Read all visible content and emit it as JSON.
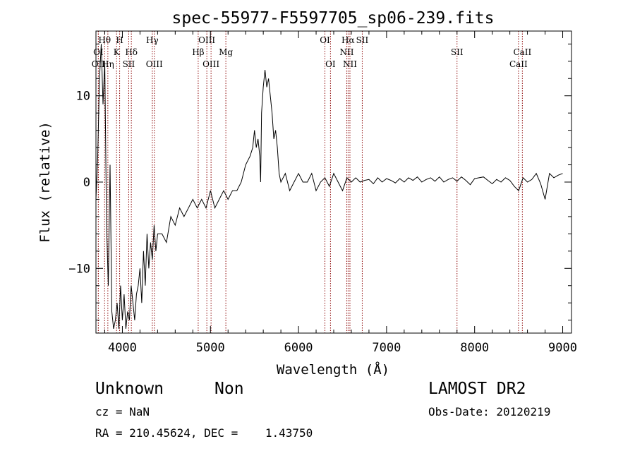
{
  "chart_data": {
    "type": "line",
    "title": "spec-55977-F5597705_sp06-239.fits",
    "xlabel": "Wavelength (Å)",
    "ylabel": "Flux (relative)",
    "xlim": [
      3700,
      9100
    ],
    "ylim": [
      -17.5,
      17.5
    ],
    "xticks": [
      4000,
      5000,
      6000,
      7000,
      8000,
      9000
    ],
    "xtick_labels": [
      "4000",
      "5000",
      "6000",
      "7000",
      "8000",
      "9000"
    ],
    "yticks": [
      -10,
      0,
      10
    ],
    "ytick_labels": [
      "−10",
      "0",
      "10"
    ],
    "grid": false,
    "legend": "none",
    "series": [
      {
        "x": [
          3700,
          3720,
          3740,
          3760,
          3780,
          3800,
          3820,
          3840,
          3860,
          3880,
          3900,
          3920,
          3940,
          3960,
          3980,
          4000,
          4020,
          4040,
          4060,
          4080,
          4100,
          4120,
          4140,
          4160,
          4180,
          4200,
          4220,
          4240,
          4260,
          4280,
          4300,
          4320,
          4340,
          4360,
          4380,
          4400,
          4450,
          4500,
          4550,
          4600,
          4650,
          4700,
          4750,
          4800,
          4850,
          4900,
          4950,
          5000,
          5050,
          5100,
          5150,
          5200,
          5250,
          5300,
          5350,
          5400,
          5450,
          5480,
          5500,
          5520,
          5540,
          5560,
          5570,
          5580,
          5600,
          5620,
          5640,
          5660,
          5680,
          5700,
          5720,
          5740,
          5760,
          5780,
          5800,
          5850,
          5900,
          5950,
          6000,
          6050,
          6100,
          6150,
          6200,
          6250,
          6300,
          6350,
          6400,
          6450,
          6500,
          6550,
          6600,
          6650,
          6700,
          6750,
          6800,
          6850,
          6900,
          6950,
          7000,
          7050,
          7100,
          7150,
          7200,
          7250,
          7300,
          7350,
          7400,
          7450,
          7500,
          7550,
          7600,
          7650,
          7700,
          7750,
          7800,
          7850,
          7900,
          7950,
          8000,
          8050,
          8100,
          8150,
          8200,
          8250,
          8300,
          8350,
          8400,
          8450,
          8500,
          8550,
          8600,
          8650,
          8700,
          8750,
          8800,
          8850,
          8900,
          8950,
          9000
        ],
        "y": [
          -2,
          3,
          12,
          16,
          9,
          14,
          -5,
          -12,
          2,
          -15,
          -17,
          -16,
          -14,
          -17,
          -12,
          -16,
          -13,
          -17,
          -15,
          -16,
          -12,
          -14,
          -16,
          -13,
          -12,
          -10,
          -14,
          -8,
          -12,
          -6,
          -10,
          -7,
          -9,
          -5,
          -8,
          -6,
          -6,
          -7,
          -4,
          -5,
          -3,
          -4,
          -3,
          -2,
          -3,
          -2,
          -3,
          -1,
          -3,
          -2,
          -1,
          -2,
          -1,
          -1,
          0,
          2,
          3,
          4,
          6,
          4,
          5,
          3,
          0,
          8,
          11,
          13,
          11,
          12,
          10,
          8,
          5,
          6,
          4,
          1,
          0,
          1,
          -1,
          0,
          1,
          0,
          0,
          1,
          -1,
          0,
          0.5,
          -0.5,
          1,
          0,
          -1,
          0.5,
          0,
          0.5,
          0,
          0.2,
          0.3,
          -0.2,
          0.5,
          0,
          0.4,
          0.2,
          -0.1,
          0.4,
          0,
          0.5,
          0.2,
          0.6,
          0,
          0.3,
          0.5,
          0.1,
          0.6,
          0,
          0.3,
          0.5,
          0.1,
          0.6,
          0.2,
          -0.3,
          0.4,
          0.5,
          0.6,
          0.2,
          -0.2,
          0.3,
          0,
          0.5,
          0.2,
          -0.5,
          -1,
          0.5,
          0,
          0.3,
          1,
          -0.2,
          -2,
          1,
          0.5,
          0.8,
          1
        ]
      }
    ],
    "lines": [
      {
        "name": "Hθ",
        "x": 3798,
        "row": 0
      },
      {
        "name": "OI",
        "x": 3727,
        "row": 1
      },
      {
        "name": "OII",
        "x": 3727,
        "row": 2
      },
      {
        "name": "Hη",
        "x": 3835,
        "row": 2
      },
      {
        "name": "H",
        "x": 3969,
        "row": 0
      },
      {
        "name": "K",
        "x": 3934,
        "row": 1
      },
      {
        "name": "Hδ",
        "x": 4102,
        "row": 1
      },
      {
        "name": "SII",
        "x": 4072,
        "row": 2
      },
      {
        "name": "Hγ",
        "x": 4340,
        "row": 0
      },
      {
        "name": "OIII",
        "x": 4363,
        "row": 2
      },
      {
        "name": "OIII",
        "x": 4959,
        "row": 0
      },
      {
        "name": "Hβ",
        "x": 4861,
        "row": 1
      },
      {
        "name": "OIII",
        "x": 5007,
        "row": 2
      },
      {
        "name": "Mg",
        "x": 5175,
        "row": 1
      },
      {
        "name": "OI",
        "x": 6300,
        "row": 0
      },
      {
        "name": "OI",
        "x": 6363,
        "row": 2
      },
      {
        "name": "Hα",
        "x": 6563,
        "row": 0
      },
      {
        "name": "SII",
        "x": 6724,
        "row": 0
      },
      {
        "name": "NII",
        "x": 6548,
        "row": 1
      },
      {
        "name": "NII",
        "x": 6584,
        "row": 2
      },
      {
        "name": "SII",
        "x": 7800,
        "row": 1
      },
      {
        "name": "CaII",
        "x": 8542,
        "row": 1
      },
      {
        "name": "CaII",
        "x": 8498,
        "row": 2
      }
    ]
  },
  "footer": {
    "class": "Unknown",
    "subclass": "Non",
    "cz": "cz = NaN",
    "coords": "RA = 210.45624, DEC =    1.43750",
    "survey": "LAMOST DR2",
    "obs_date": "Obs-Date: 20120219"
  },
  "colors": {
    "axes": "#000000",
    "spectrum": "#000000",
    "line_markers": "#8b0000"
  }
}
